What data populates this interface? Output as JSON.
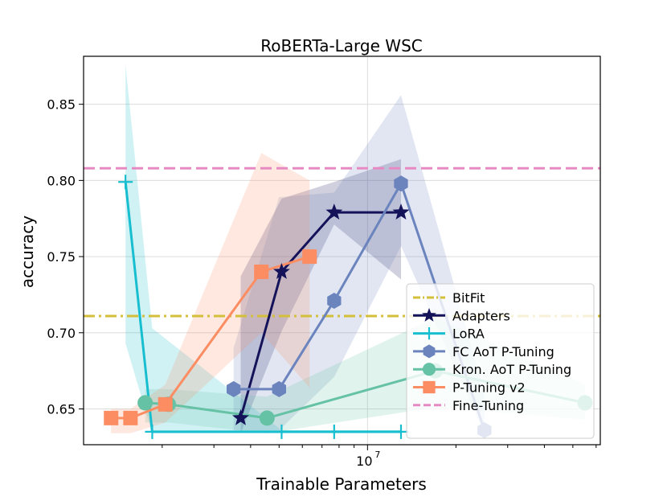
{
  "chart_data": {
    "type": "line",
    "title": "RoBERTa-Large WSC",
    "xlabel": "Trainable Parameters",
    "ylabel": "accuracy",
    "xscale": "log",
    "xlim": [
      1080000,
      62000000
    ],
    "ylim": [
      0.6265,
      0.8815
    ],
    "x_major_tick": {
      "value": 10000000,
      "base": "10",
      "exp": "7"
    },
    "x_minor_ticks": [
      2000000,
      3000000,
      4000000,
      5000000,
      6000000,
      7000000,
      8000000,
      9000000,
      20000000,
      30000000,
      40000000,
      50000000,
      60000000
    ],
    "y_ticks": [
      0.65,
      0.7,
      0.75,
      0.8,
      0.85
    ],
    "y_tick_labels": [
      "0.65",
      "0.70",
      "0.75",
      "0.80",
      "0.85"
    ],
    "grid": true,
    "legend_position": "lower-right",
    "reference_lines": [
      {
        "name": "BitFit",
        "y": 0.711,
        "color": "#d4bf3a",
        "dash": "dashdot"
      },
      {
        "name": "Fine-Tuning",
        "y": 0.808,
        "color": "#e78ac3",
        "dash": "dashed"
      }
    ],
    "series": [
      {
        "name": "Adapters",
        "color": "#14135a",
        "marker": "star",
        "x": [
          3700000,
          5100000,
          7700000,
          13000000
        ],
        "y": [
          0.644,
          0.74,
          0.779,
          0.779
        ],
        "band_upper": [
          0.737,
          0.788,
          0.799,
          0.814
        ],
        "band_lower": [
          0.634,
          0.701,
          0.771,
          0.735
        ]
      },
      {
        "name": "LoRA",
        "color": "#17becf",
        "marker": "plus",
        "x": [
          1500000,
          1850000,
          5100000,
          7700000,
          13000000
        ],
        "y": [
          0.799,
          0.635,
          0.635,
          0.635,
          0.635
        ],
        "band_upper": [
          0.876,
          0.703,
          0.636,
          0.636,
          0.636
        ],
        "band_lower": [
          0.693,
          0.634,
          0.634,
          0.634,
          0.634
        ]
      },
      {
        "name": "FC AoT P-Tuning",
        "color": "#6b84bd",
        "marker": "hexagon",
        "x": [
          3500000,
          5000000,
          7700000,
          13000000,
          25000000
        ],
        "y": [
          0.663,
          0.663,
          0.721,
          0.798,
          0.636
        ],
        "band_upper": [
          0.69,
          0.789,
          0.792,
          0.856,
          0.66
        ],
        "band_lower": [
          0.636,
          0.636,
          0.671,
          0.757,
          0.634
        ]
      },
      {
        "name": "Kron. AoT P-Tuning",
        "color": "#66c2a5",
        "marker": "circle",
        "x": [
          1750000,
          2100000,
          4550000,
          17000000,
          55000000
        ],
        "y": [
          0.654,
          0.653,
          0.644,
          0.675,
          0.654
        ],
        "band_upper": [
          0.663,
          0.663,
          0.658,
          0.71,
          0.666
        ],
        "band_lower": [
          0.641,
          0.641,
          0.634,
          0.651,
          0.643
        ]
      },
      {
        "name": "P-Tuning v2",
        "color": "#fc8d62",
        "marker": "square",
        "x": [
          1340000,
          1560000,
          2050000,
          4350000,
          6350000
        ],
        "y": [
          0.644,
          0.644,
          0.653,
          0.74,
          0.75
        ],
        "band_upper": [
          0.65,
          0.65,
          0.666,
          0.818,
          0.8
        ],
        "band_lower": [
          0.634,
          0.634,
          0.641,
          0.7,
          0.664
        ]
      }
    ]
  }
}
